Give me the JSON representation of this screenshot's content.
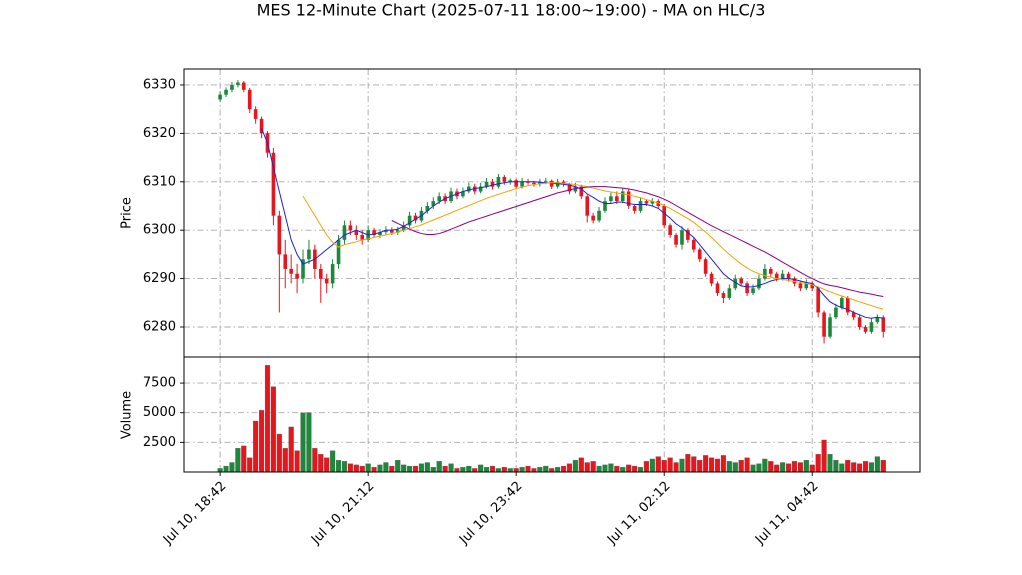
{
  "chart_data": {
    "type": "candlestick",
    "title": "MES 12-Minute Chart (2025-07-11 18:00~19:00) - MA on HLC/3",
    "ylabel": "Price",
    "volume_ylabel": "Volume",
    "up_color": "#1a8a3a",
    "down_color": "#e8161c",
    "grid": true,
    "xlim": [
      -6.1,
      118.2
    ],
    "xticks": [
      {
        "value": 0,
        "label": "Jul 10, 18:42"
      },
      {
        "value": 25,
        "label": "Jul 10, 21:12"
      },
      {
        "value": 50,
        "label": "Jul 10, 23:42"
      },
      {
        "value": 75,
        "label": "Jul 11, 02:12"
      },
      {
        "value": 100,
        "label": "Jul 11, 04:42"
      }
    ],
    "ylim": [
      6273.8,
      6333.3
    ],
    "yticks": [
      6280,
      6290,
      6300,
      6310,
      6320,
      6330
    ],
    "volume_ylim": [
      0,
      9700
    ],
    "volume_yticks": [
      2500,
      5000,
      7500
    ],
    "ohlc": [
      [
        6327,
        6328.7,
        6326.5,
        6328
      ],
      [
        6328,
        6329.5,
        6327.5,
        6329
      ],
      [
        6329,
        6330.6,
        6328.5,
        6330
      ],
      [
        6330,
        6331,
        6329.5,
        6330.5
      ],
      [
        6330.5,
        6330.8,
        6328.5,
        6329
      ],
      [
        6329,
        6329.4,
        6324.2,
        6325
      ],
      [
        6325,
        6325.6,
        6322,
        6323
      ],
      [
        6323,
        6323.5,
        6319,
        6320
      ],
      [
        6320,
        6320.5,
        6315,
        6316
      ],
      [
        6316,
        6317,
        6301,
        6303
      ],
      [
        6303,
        6304,
        6283,
        6295
      ],
      [
        6295,
        6298,
        6288,
        6292
      ],
      [
        6292,
        6295,
        6289,
        6291
      ],
      [
        6291,
        6293,
        6287,
        6290
      ],
      [
        6290,
        6296,
        6289,
        6294
      ],
      [
        6294,
        6298,
        6293,
        6296
      ],
      [
        6296,
        6297,
        6290,
        6292
      ],
      [
        6292,
        6293,
        6285,
        6290
      ],
      [
        6290,
        6291,
        6287,
        6289
      ],
      [
        6289,
        6294,
        6288,
        6293
      ],
      [
        6293,
        6299,
        6292,
        6298
      ],
      [
        6298,
        6302,
        6297,
        6301
      ],
      [
        6301,
        6302,
        6299,
        6300
      ],
      [
        6300,
        6301,
        6298,
        6299
      ],
      [
        6299,
        6300,
        6297,
        6298
      ],
      [
        6298,
        6301,
        6297.5,
        6300
      ],
      [
        6300,
        6300.5,
        6298.5,
        6299
      ],
      [
        6299,
        6300.2,
        6298.4,
        6299.6
      ],
      [
        6299.6,
        6300.8,
        6299,
        6300
      ],
      [
        6300,
        6300.6,
        6299,
        6299.5
      ],
      [
        6299.5,
        6300.7,
        6299,
        6300
      ],
      [
        6300,
        6301.8,
        6299.6,
        6301
      ],
      [
        6301,
        6303.8,
        6300.5,
        6303
      ],
      [
        6303,
        6303.6,
        6301.4,
        6302
      ],
      [
        6302,
        6304.8,
        6301.6,
        6304
      ],
      [
        6304,
        6305.8,
        6303.4,
        6305
      ],
      [
        6305,
        6306.8,
        6304.4,
        6306
      ],
      [
        6306,
        6307.8,
        6305.4,
        6307
      ],
      [
        6307,
        6307.6,
        6305.4,
        6306
      ],
      [
        6306,
        6308.8,
        6305.6,
        6308
      ],
      [
        6308,
        6308.6,
        6306.4,
        6307
      ],
      [
        6307,
        6308.8,
        6306.6,
        6308
      ],
      [
        6308,
        6309.8,
        6307.6,
        6309
      ],
      [
        6309,
        6309.6,
        6307.4,
        6308
      ],
      [
        6308,
        6309.8,
        6307.6,
        6309
      ],
      [
        6309,
        6310.8,
        6308.6,
        6310
      ],
      [
        6310,
        6310.6,
        6308.4,
        6309
      ],
      [
        6309,
        6311.6,
        6308.6,
        6311
      ],
      [
        6311,
        6311.4,
        6309.4,
        6310
      ],
      [
        6310,
        6310.7,
        6309.4,
        6310.3
      ],
      [
        6310.3,
        6310.6,
        6308.4,
        6309
      ],
      [
        6309,
        6310.8,
        6308.6,
        6310
      ],
      [
        6310,
        6310.6,
        6309.4,
        6309.8
      ],
      [
        6309.8,
        6310.2,
        6309,
        6309.5
      ],
      [
        6309.5,
        6310.6,
        6309,
        6310
      ],
      [
        6310,
        6310.8,
        6309.5,
        6310.2
      ],
      [
        6310.2,
        6310.5,
        6308.5,
        6309
      ],
      [
        6309,
        6310.6,
        6308.6,
        6310
      ],
      [
        6310,
        6310.4,
        6309,
        6309.5
      ],
      [
        6309.5,
        6309.8,
        6307.4,
        6308
      ],
      [
        6308,
        6309.8,
        6307.6,
        6309
      ],
      [
        6309,
        6309.4,
        6306.4,
        6307
      ],
      [
        6307,
        6307.4,
        6301.6,
        6303
      ],
      [
        6303,
        6303.6,
        6301.4,
        6302
      ],
      [
        6302,
        6304.8,
        6301.6,
        6304
      ],
      [
        6304,
        6306.8,
        6303.6,
        6306
      ],
      [
        6306,
        6307.8,
        6305.6,
        6307
      ],
      [
        6307,
        6308,
        6305.4,
        6306
      ],
      [
        6306,
        6308.8,
        6305.6,
        6308
      ],
      [
        6308,
        6308.4,
        6304.4,
        6305
      ],
      [
        6305,
        6305.4,
        6303.4,
        6304
      ],
      [
        6304,
        6306.8,
        6303.6,
        6306
      ],
      [
        6306,
        6306.4,
        6305,
        6305.5
      ],
      [
        6305.5,
        6306.6,
        6305,
        6306
      ],
      [
        6306,
        6306.4,
        6304.4,
        6305
      ],
      [
        6305,
        6305.4,
        6300.4,
        6301
      ],
      [
        6301,
        6301.4,
        6298.4,
        6299
      ],
      [
        6299,
        6299.4,
        6296.4,
        6297
      ],
      [
        6297,
        6300.8,
        6296,
        6300
      ],
      [
        6300,
        6300.4,
        6297.4,
        6298
      ],
      [
        6298,
        6298.4,
        6295.4,
        6296
      ],
      [
        6296,
        6296.4,
        6293.4,
        6294
      ],
      [
        6294,
        6294.4,
        6290.4,
        6291
      ],
      [
        6291,
        6291.4,
        6288.4,
        6289
      ],
      [
        6289,
        6289.4,
        6286.4,
        6287
      ],
      [
        6287,
        6287.4,
        6285,
        6286
      ],
      [
        6286,
        6288.8,
        6285.6,
        6288
      ],
      [
        6288,
        6290.8,
        6287.6,
        6290
      ],
      [
        6290,
        6290.4,
        6288.4,
        6289
      ],
      [
        6289,
        6289.4,
        6286.4,
        6287
      ],
      [
        6287,
        6288.8,
        6286.6,
        6288
      ],
      [
        6288,
        6290.8,
        6287.6,
        6290
      ],
      [
        6290,
        6293,
        6289.6,
        6292
      ],
      [
        6292,
        6292.4,
        6290.4,
        6291
      ],
      [
        6291,
        6291.4,
        6289.4,
        6290
      ],
      [
        6290,
        6291.8,
        6289.6,
        6291
      ],
      [
        6291,
        6291.4,
        6289.4,
        6290
      ],
      [
        6290,
        6290.4,
        6288.4,
        6289
      ],
      [
        6289,
        6289.4,
        6287.4,
        6288
      ],
      [
        6288,
        6289.8,
        6287.6,
        6289
      ],
      [
        6289,
        6289.4,
        6287.4,
        6288
      ],
      [
        6288,
        6288.4,
        6282,
        6283
      ],
      [
        6283,
        6283.4,
        6276.6,
        6278
      ],
      [
        6278,
        6282.8,
        6277.6,
        6282
      ],
      [
        6282,
        6284.8,
        6281.6,
        6284
      ],
      [
        6284,
        6286.5,
        6283.6,
        6286
      ],
      [
        6286,
        6286.4,
        6282.4,
        6283
      ],
      [
        6283,
        6283.4,
        6281.4,
        6282
      ],
      [
        6282,
        6282.4,
        6279.4,
        6280
      ],
      [
        6280,
        6280.4,
        6278.6,
        6279
      ],
      [
        6279,
        6281.8,
        6278.6,
        6281
      ],
      [
        6281,
        6282.6,
        6280.6,
        6282
      ],
      [
        6282,
        6282.4,
        6277.8,
        6279
      ]
    ],
    "volume": [
      300,
      500,
      800,
      2000,
      2200,
      1200,
      4300,
      5200,
      9000,
      7200,
      3200,
      2000,
      3800,
      1800,
      5000,
      5000,
      2000,
      1500,
      1200,
      1800,
      1000,
      900,
      700,
      600,
      500,
      700,
      400,
      600,
      800,
      500,
      1000,
      600,
      500,
      500,
      700,
      800,
      400,
      900,
      500,
      700,
      300,
      400,
      500,
      300,
      600,
      400,
      500,
      300,
      400,
      300,
      300,
      400,
      500,
      300,
      400,
      500,
      300,
      400,
      500,
      700,
      1000,
      1200,
      800,
      900,
      500,
      600,
      700,
      500,
      400,
      600,
      500,
      400,
      900,
      1100,
      1300,
      1000,
      1200,
      800,
      1100,
      1500,
      1300,
      1000,
      1400,
      1200,
      1100,
      1400,
      900,
      800,
      1000,
      1200,
      600,
      700,
      1100,
      900,
      600,
      800,
      700,
      900,
      800,
      1000,
      600,
      1500,
      2700,
      1500,
      1000,
      700,
      1000,
      800,
      700,
      900,
      800,
      1300,
      1000
    ],
    "mav": [
      {
        "color": "#1f1fe0",
        "values": [
          null,
          null,
          null,
          null,
          null,
          null,
          null,
          6321,
          6318,
          6313,
          6308,
          6303,
          6298,
          6295,
          6293,
          6293.5,
          6294,
          6295,
          6296,
          6297,
          6298,
          6299,
          6299.5,
          6300,
          6299.5,
          6299,
          6299.2,
          6299.5,
          6300,
          6300,
          6300.2,
          6300.8,
          6301.5,
          6302.3,
          6303,
          6304,
          6305,
          6305.8,
          6306.5,
          6307,
          6307.5,
          6308,
          6308.3,
          6308.6,
          6308.8,
          6309,
          6309.3,
          6309.6,
          6309.8,
          6310,
          6310,
          6310,
          6310,
          6310,
          6309.9,
          6309.8,
          6309.7,
          6309.6,
          6309.5,
          6309.3,
          6309,
          6308.5,
          6307.5,
          6306.8,
          6306,
          6305.5,
          6305.5,
          6305.8,
          6305.8,
          6305.5,
          6305.3,
          6305.3,
          6305.3,
          6305,
          6304.5,
          6303.5,
          6302.5,
          6301.3,
          6300.5,
          6299.5,
          6298.5,
          6297,
          6295.5,
          6294,
          6292.5,
          6291,
          6290,
          6289.2,
          6288.5,
          6288.3,
          6288.3,
          6288.6,
          6289,
          6289.5,
          6289.8,
          6290,
          6290,
          6289.8,
          6289.5,
          6289.2,
          6289,
          6288,
          6286.5,
          6285.2,
          6284.5,
          6284,
          6283.6,
          6283,
          6282.5,
          6282,
          6281.8,
          6282,
          6281.8
        ]
      },
      {
        "color": "#f5a300",
        "values": [
          null,
          null,
          null,
          null,
          null,
          null,
          null,
          null,
          null,
          null,
          null,
          null,
          null,
          null,
          6307,
          6305,
          6303,
          6301,
          6299,
          6297.5,
          6296.5,
          6297,
          6297.3,
          6297.6,
          6298,
          6298.2,
          6298.5,
          6298.8,
          6299,
          6299.3,
          6299.6,
          6300,
          6300.3,
          6300.7,
          6301.1,
          6301.6,
          6302.1,
          6302.6,
          6303.1,
          6303.6,
          6304.1,
          6304.6,
          6305.1,
          6305.6,
          6306.1,
          6306.6,
          6307,
          6307.4,
          6307.8,
          6308.2,
          6308.6,
          6308.9,
          6309.2,
          6309.4,
          6309.6,
          6309.7,
          6309.8,
          6309.8,
          6309.7,
          6309.6,
          6309.4,
          6309.2,
          6309,
          6308.7,
          6308.4,
          6308.1,
          6307.9,
          6307.7,
          6307.5,
          6307.3,
          6307,
          6306.7,
          6306.3,
          6306,
          6305.6,
          6305.1,
          6304.5,
          6303.8,
          6303.1,
          6302.4,
          6301.6,
          6300.6,
          6299.6,
          6298.5,
          6297.3,
          6296.1,
          6295,
          6294,
          6293,
          6292.2,
          6291.5,
          6291,
          6290.6,
          6290.3,
          6290,
          6289.8,
          6289.6,
          6289.4,
          6289.2,
          6289,
          6288.7,
          6288.3,
          6287.8,
          6287.3,
          6286.8,
          6286.4,
          6286,
          6285.6,
          6285.2,
          6284.8,
          6284.4,
          6284,
          6283.7
        ]
      },
      {
        "color": "#8b008b",
        "values": [
          null,
          null,
          null,
          null,
          null,
          null,
          null,
          null,
          null,
          null,
          null,
          null,
          null,
          null,
          null,
          null,
          null,
          null,
          null,
          null,
          null,
          null,
          null,
          null,
          null,
          null,
          null,
          null,
          null,
          6302,
          6301.4,
          6300.8,
          6300.2,
          6299.7,
          6299.3,
          6299.1,
          6299.1,
          6299.3,
          6299.7,
          6300.2,
          6300.7,
          6301.2,
          6301.7,
          6302.1,
          6302.5,
          6302.9,
          6303.3,
          6303.7,
          6304.1,
          6304.5,
          6304.9,
          6305.3,
          6305.7,
          6306.1,
          6306.5,
          6306.9,
          6307.3,
          6307.7,
          6308,
          6308.3,
          6308.6,
          6308.8,
          6308.9,
          6309,
          6309,
          6309,
          6308.9,
          6308.8,
          6308.7,
          6308.5,
          6308.3,
          6308,
          6307.7,
          6307.3,
          6306.9,
          6306.4,
          6305.8,
          6305.1,
          6304.4,
          6303.7,
          6303,
          6302.3,
          6301.6,
          6300.9,
          6300.3,
          6299.7,
          6299.1,
          6298.5,
          6297.9,
          6297.3,
          6296.7,
          6296.1,
          6295.5,
          6294.8,
          6294.1,
          6293.4,
          6292.7,
          6292,
          6291.3,
          6290.6,
          6290,
          6289.4,
          6288.9,
          6288.6,
          6288.4,
          6288.1,
          6287.8,
          6287.5,
          6287.2,
          6287,
          6286.8,
          6286.5,
          6286.3
        ]
      }
    ]
  }
}
